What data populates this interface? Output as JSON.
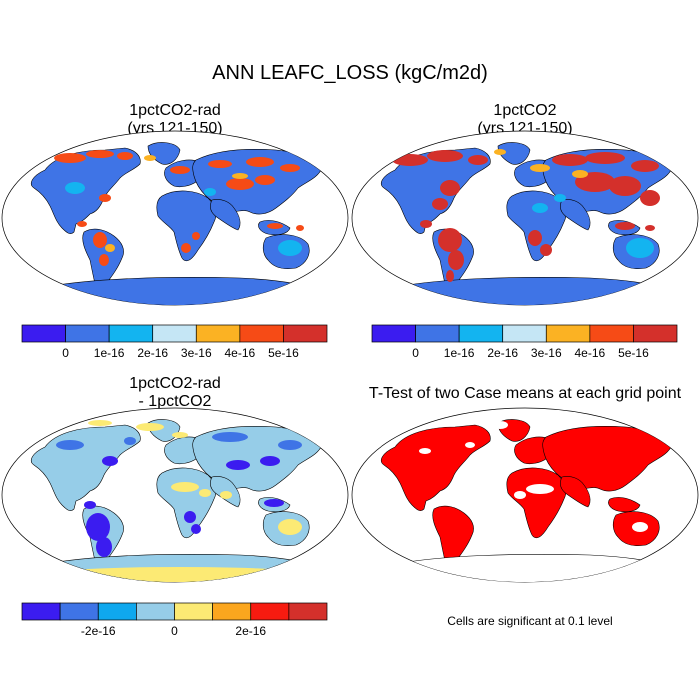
{
  "figure": {
    "title": "ANN LEAFC_LOSS (kgC/m2d)"
  },
  "panels": [
    {
      "id": "p1",
      "title_line1": "1pctCO2-rad",
      "title_line2": "(yrs 121-150)"
    },
    {
      "id": "p2",
      "title_line1": "1pctCO2",
      "title_line2": "(yrs 121-150)"
    },
    {
      "id": "p3",
      "title_line1": "1pctCO2-rad",
      "title_line2": "- 1pctCO2"
    },
    {
      "id": "p4",
      "title_line1": "T-Test of two Case means at each grid point",
      "title_line2": ""
    }
  ],
  "colorbars": {
    "abs": {
      "colors": [
        "#3b1cf0",
        "#3f74e6",
        "#13b4f0",
        "#c5e6f5",
        "#fbb223",
        "#f64b16",
        "#d4302b"
      ],
      "tick_labels": [
        "0",
        "1e-16",
        "2e-16",
        "3e-16",
        "4e-16",
        "5e-16"
      ]
    },
    "diff": {
      "colors": [
        "#3b1cf0",
        "#3f74e6",
        "#0fa8ee",
        "#96cde8",
        "#fcea74",
        "#fba61e",
        "#f71b10",
        "#d4302b"
      ],
      "tick_labels": [
        "-2e-16",
        "0",
        "2e-16"
      ]
    }
  },
  "ttest_note": "Cells are significant at 0.1 level",
  "map_colors": {
    "ocean": "#ffffff",
    "coast": "#000000",
    "land_p1": "#3f74e6",
    "hot_p1": "#f64b16",
    "land_p2": "#3f74e6",
    "hot_p2": "#d4302b",
    "land_p3": "#96cde8",
    "neg_p3": "#3b1cf0",
    "pos_p3": "#fcea74",
    "sig_p4": "#ff0000"
  }
}
